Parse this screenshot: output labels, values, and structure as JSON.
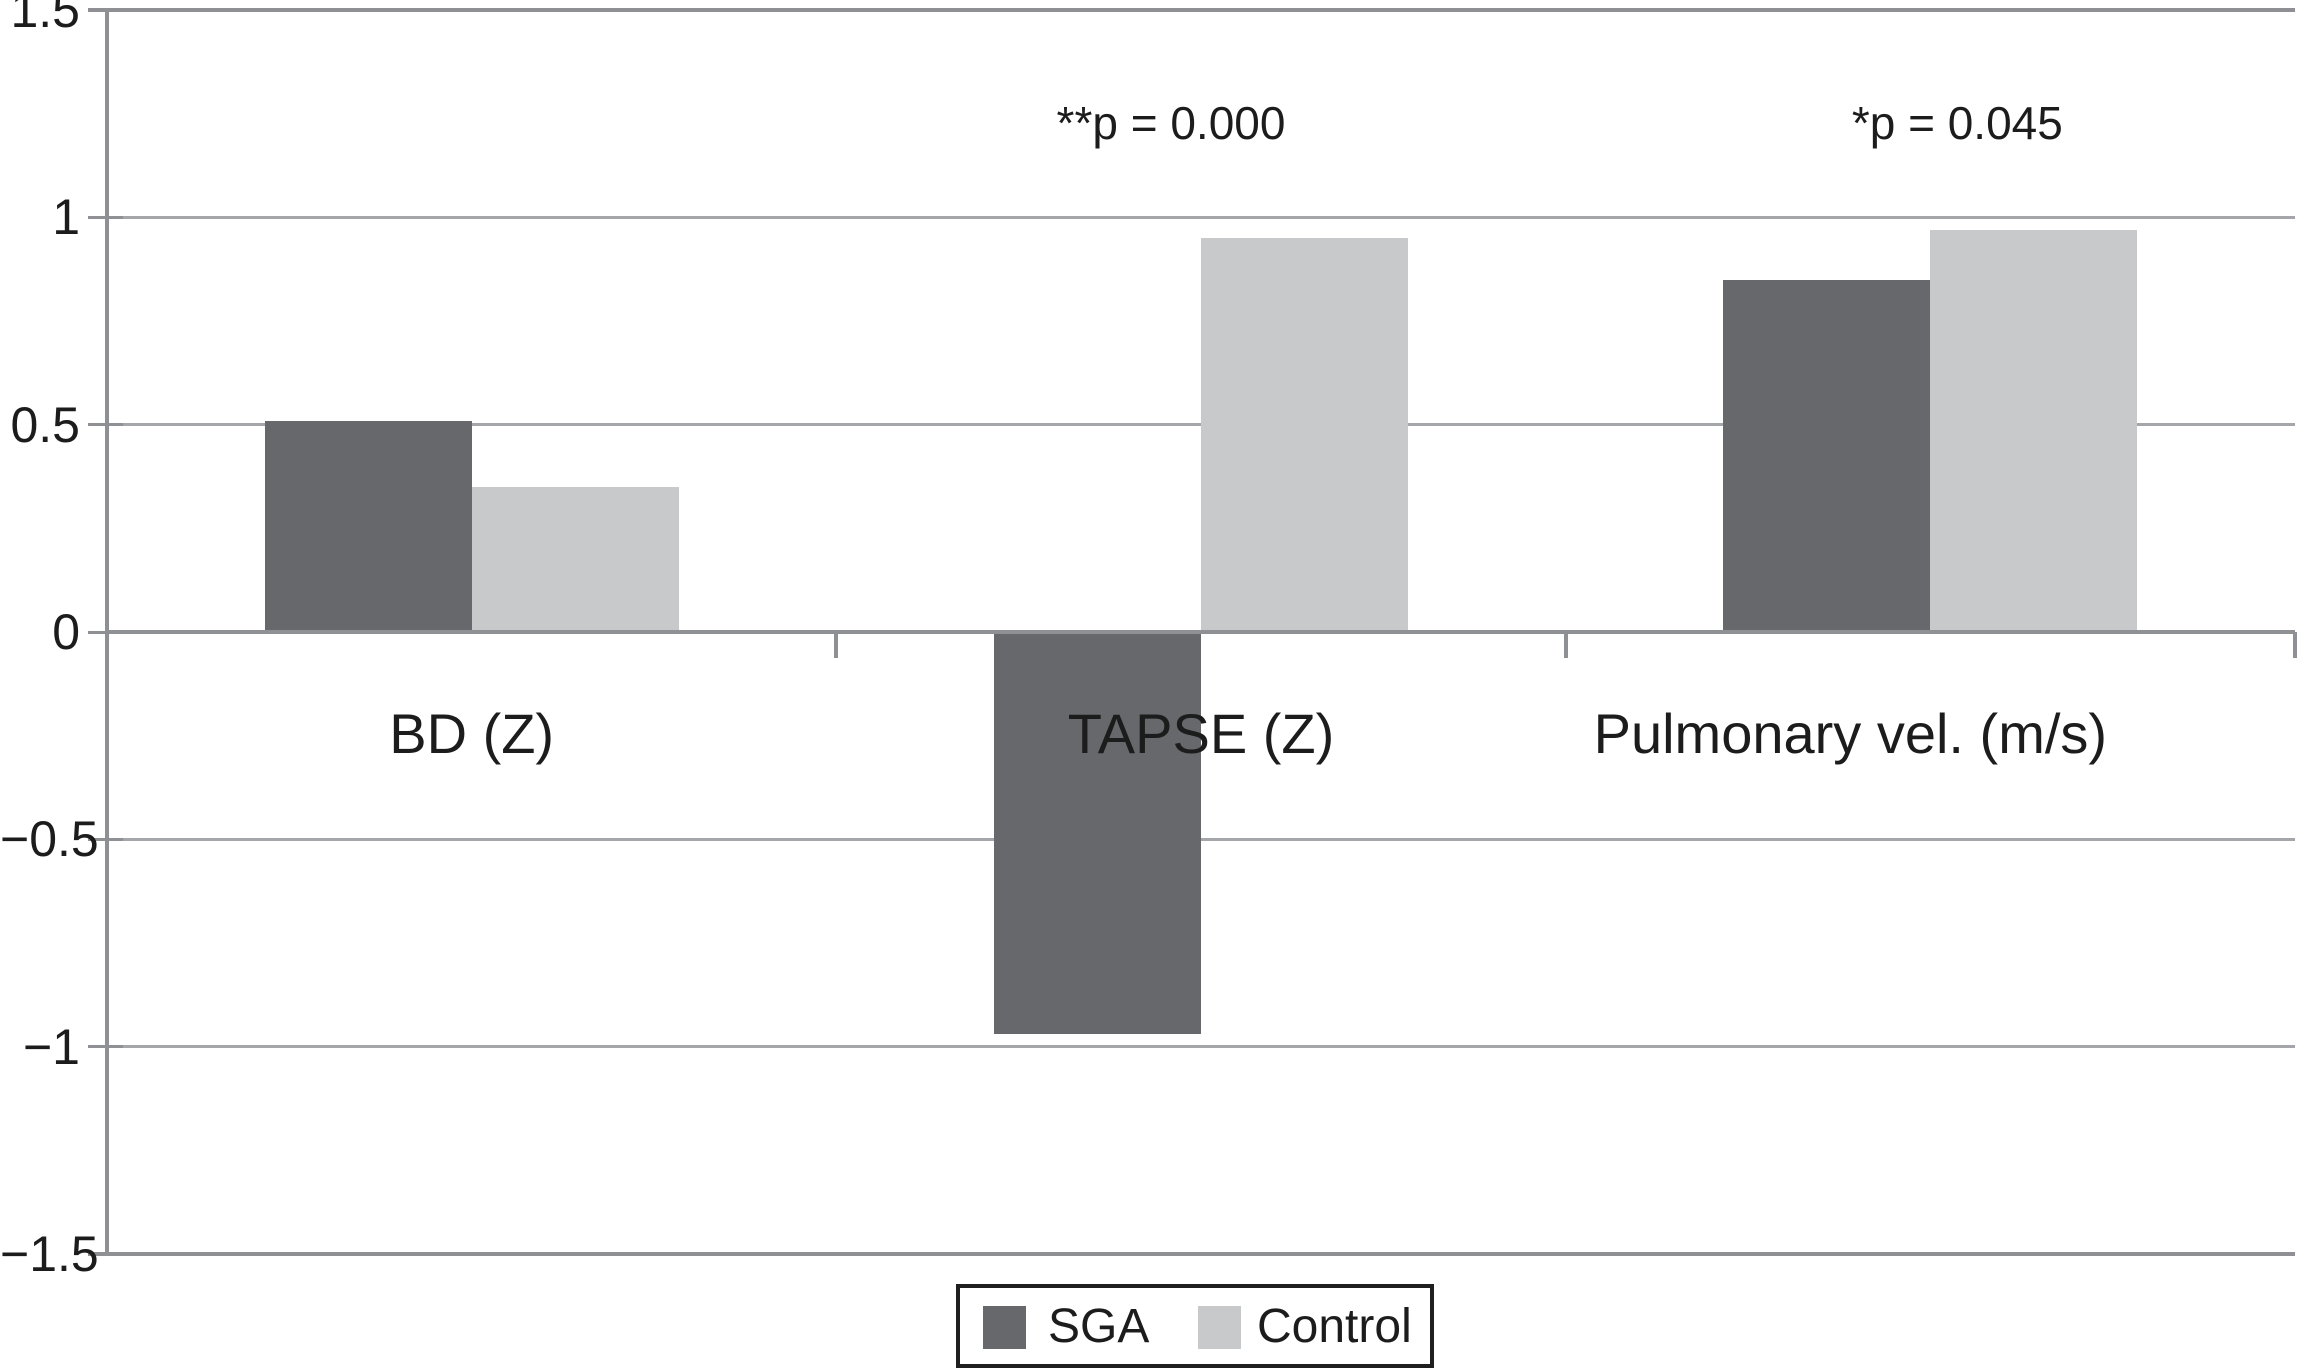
{
  "figure": {
    "background": "#ffffff"
  },
  "chart_data": {
    "type": "bar",
    "title": "",
    "categories": [
      "BD (Z)",
      "TAPSE (Z)",
      "Pulmonary vel. (m/s)"
    ],
    "series": [
      {
        "name": "SGA",
        "color": "#66686c",
        "values": [
          0.51,
          -0.97,
          0.85
        ]
      },
      {
        "name": "Control",
        "color": "#c8c9cb",
        "values": [
          0.35,
          0.95,
          0.97
        ]
      }
    ],
    "annotations": [
      {
        "category_index": 1,
        "text": "**p = 0.000"
      },
      {
        "category_index": 2,
        "text": "*p = 0.045"
      }
    ],
    "y_axis": {
      "min": -1.5,
      "max": 1.5,
      "tick_step": 0.5,
      "tick_labels": [
        "1.5",
        "1",
        "0.5",
        "0",
        "−0.5",
        "−1",
        "−1.5"
      ]
    },
    "x_axis": {
      "boundary_ticks": true
    },
    "grid": "horizontal",
    "legend": {
      "position": "bottom",
      "entries": [
        "SGA",
        "Control"
      ]
    },
    "colors": {
      "gridline": "#a4a6a9",
      "axis": "#8e9093",
      "text": "#1c1c1c",
      "legend_border": "#1f1f1f"
    }
  }
}
